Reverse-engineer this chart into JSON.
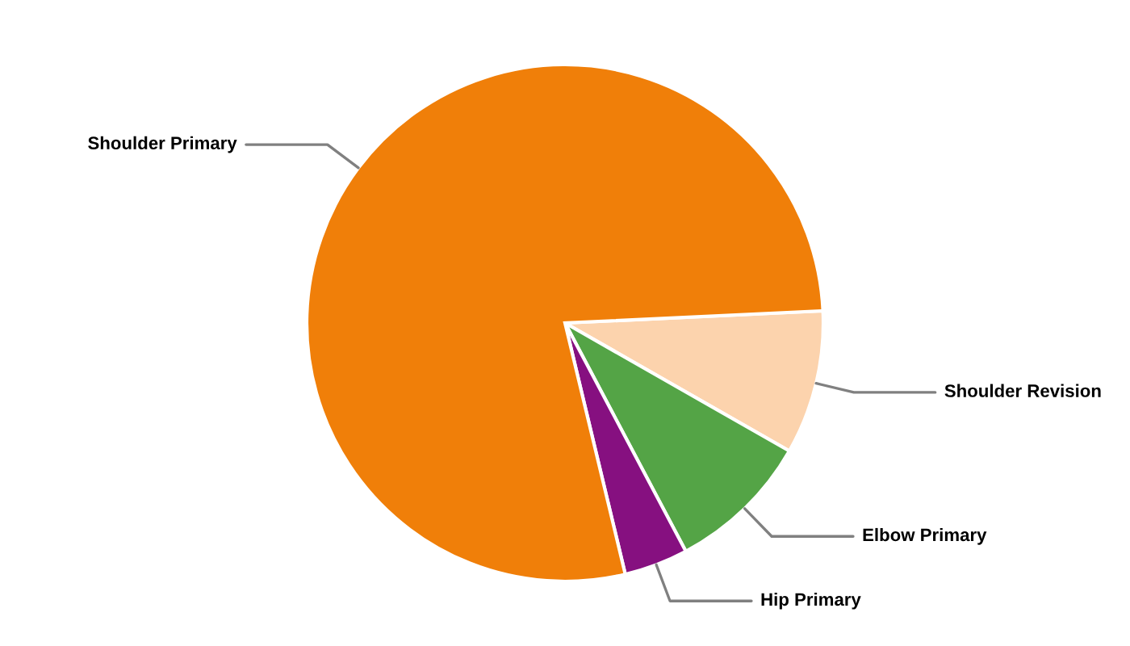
{
  "chart_data": {
    "type": "pie",
    "categories": [
      "Shoulder Revision",
      "Elbow Primary",
      "Hip Primary",
      "Shoulder Primary"
    ],
    "values": [
      9,
      9,
      4,
      78
    ],
    "colors": [
      "#fcd3ad",
      "#54a446",
      "#861080",
      "#f07f09"
    ],
    "legend": false
  }
}
